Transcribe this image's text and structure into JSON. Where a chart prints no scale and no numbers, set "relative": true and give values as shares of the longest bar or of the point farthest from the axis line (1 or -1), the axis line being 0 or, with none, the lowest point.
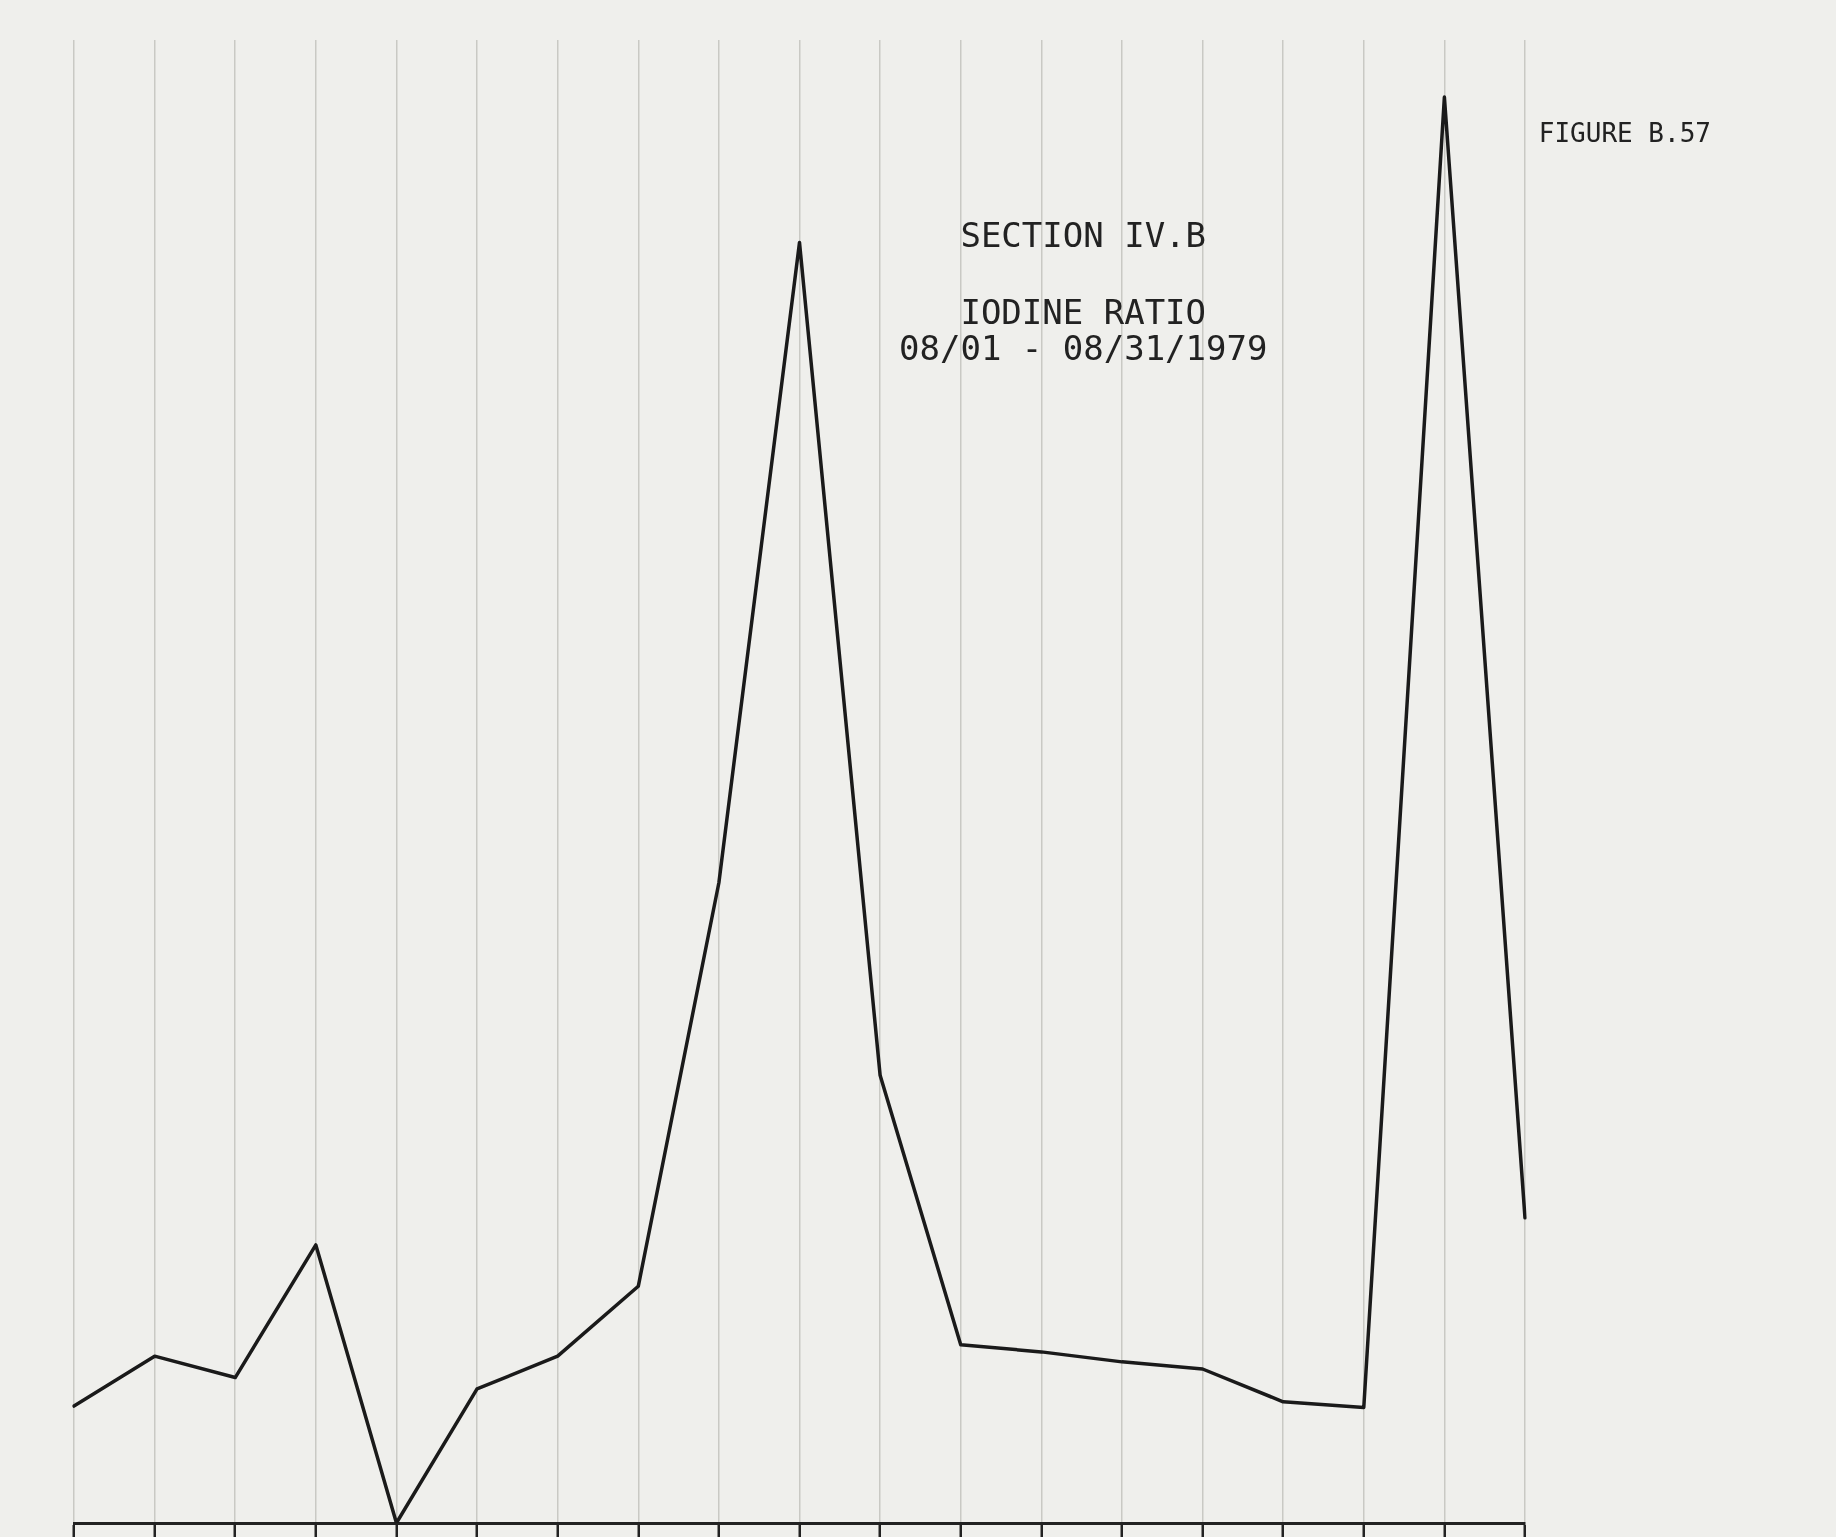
{
  "chart_data": {
    "type": "line",
    "title": "SECTION IV.B",
    "subtitle": "IODINE RATIO\n08/01 - 08/31/1979",
    "annotations": [
      "FIGURE B.57"
    ],
    "relative": true,
    "categories": [
      null,
      null,
      null,
      null,
      null,
      null,
      null,
      null,
      null,
      null,
      null,
      null,
      null,
      null,
      null,
      null,
      null,
      null,
      null
    ],
    "series": [
      {
        "color": "#1a1a1a",
        "values": [
          0.082,
          0.117,
          0.102,
          0.195,
          0,
          0.094,
          0.117,
          0.166,
          0.449,
          0.898,
          0.314,
          0.125,
          0.12,
          0.113,
          0.108,
          0.085,
          0.081,
          1,
          0.214
        ]
      }
    ],
    "tick_labels": false,
    "grid": "x",
    "legend": false,
    "marker": "none",
    "line_style": "solid"
  }
}
